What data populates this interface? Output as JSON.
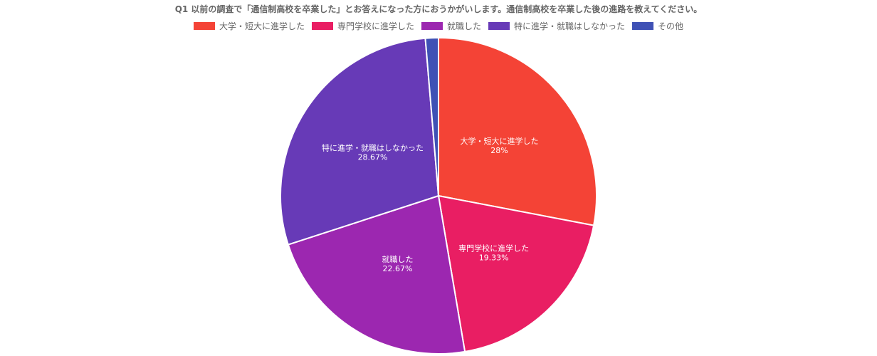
{
  "chart_data": {
    "type": "pie",
    "title": "Q1 以前の調査で「通信制高校を卒業した」とお答えになった方におうかがいします。通信制高校を卒業した後の進路を教えてください。",
    "legend_position": "top",
    "categories": [
      "大学・短大に進学した",
      "専門学校に進学した",
      "就職した",
      "特に進学・就職はしなかった",
      "その他"
    ],
    "values": [
      28,
      19.33,
      22.67,
      28.67,
      1.33
    ],
    "value_labels": [
      "28%",
      "19.33%",
      "22.67%",
      "28.67%",
      ""
    ],
    "colors": [
      "#f44336",
      "#e91e63",
      "#9c27b0",
      "#673ab7",
      "#3f51b5"
    ]
  }
}
